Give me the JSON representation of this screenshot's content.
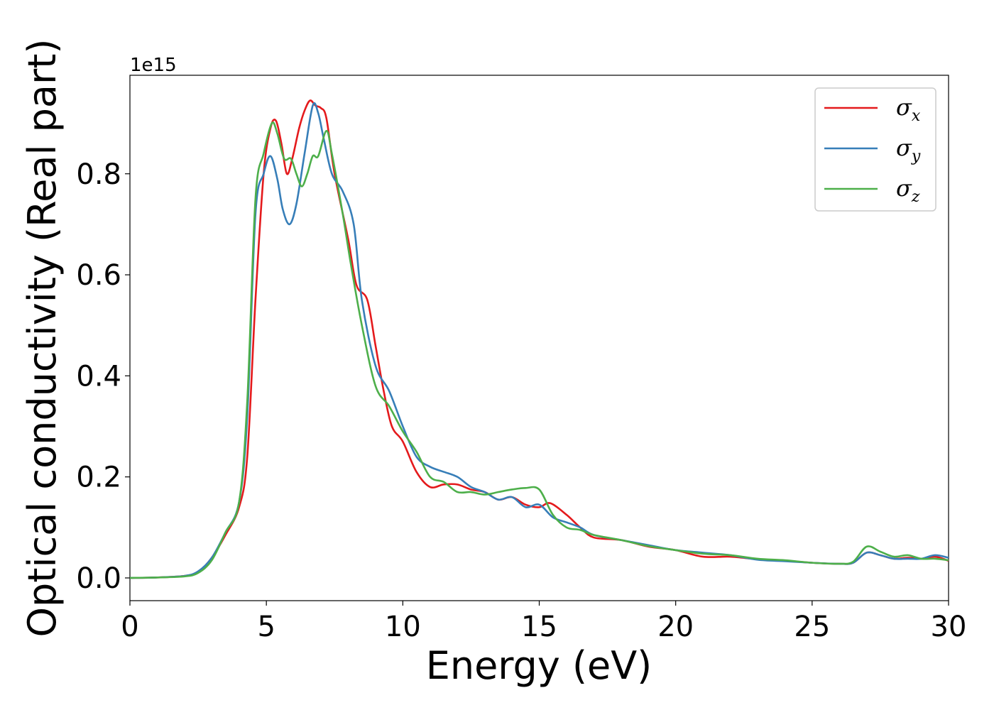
{
  "chart_data": {
    "type": "line",
    "xlabel": "Energy (eV)",
    "ylabel": "Optical conductivity (Real part)",
    "y_offset_label": "1e15",
    "xlim": [
      0,
      30
    ],
    "ylim": [
      -0.045,
      0.995
    ],
    "x_ticks": [
      0,
      5,
      10,
      15,
      20,
      25,
      30
    ],
    "x_tick_labels": [
      "0",
      "5",
      "10",
      "15",
      "20",
      "25",
      "30"
    ],
    "y_ticks": [
      0.0,
      0.2,
      0.4,
      0.6,
      0.8
    ],
    "y_tick_labels": [
      "0.0",
      "0.2",
      "0.4",
      "0.6",
      "0.8"
    ],
    "grid": false,
    "legend_position": "top-right",
    "series": [
      {
        "name": "σ",
        "subscript": "x",
        "color": "#e41a1c",
        "points": [
          [
            0,
            0.0
          ],
          [
            1,
            0.001
          ],
          [
            2,
            0.004
          ],
          [
            2.5,
            0.012
          ],
          [
            3,
            0.04
          ],
          [
            3.5,
            0.085
          ],
          [
            4,
            0.14
          ],
          [
            4.3,
            0.24
          ],
          [
            4.6,
            0.55
          ],
          [
            4.9,
            0.8
          ],
          [
            5.15,
            0.89
          ],
          [
            5.35,
            0.905
          ],
          [
            5.55,
            0.86
          ],
          [
            5.75,
            0.8
          ],
          [
            5.95,
            0.83
          ],
          [
            6.2,
            0.89
          ],
          [
            6.4,
            0.925
          ],
          [
            6.6,
            0.945
          ],
          [
            6.8,
            0.935
          ],
          [
            7.0,
            0.93
          ],
          [
            7.2,
            0.91
          ],
          [
            7.5,
            0.8
          ],
          [
            8.0,
            0.67
          ],
          [
            8.3,
            0.58
          ],
          [
            8.7,
            0.55
          ],
          [
            9.0,
            0.46
          ],
          [
            9.3,
            0.37
          ],
          [
            9.6,
            0.3
          ],
          [
            10,
            0.27
          ],
          [
            10.5,
            0.21
          ],
          [
            11,
            0.18
          ],
          [
            11.5,
            0.185
          ],
          [
            12,
            0.185
          ],
          [
            12.5,
            0.175
          ],
          [
            13,
            0.17
          ],
          [
            13.5,
            0.155
          ],
          [
            14,
            0.16
          ],
          [
            14.5,
            0.145
          ],
          [
            15,
            0.14
          ],
          [
            15.4,
            0.148
          ],
          [
            16,
            0.125
          ],
          [
            16.5,
            0.1
          ],
          [
            17,
            0.08
          ],
          [
            18,
            0.075
          ],
          [
            19,
            0.062
          ],
          [
            20,
            0.055
          ],
          [
            21,
            0.042
          ],
          [
            22,
            0.042
          ],
          [
            23,
            0.037
          ],
          [
            24,
            0.034
          ],
          [
            25,
            0.03
          ],
          [
            26,
            0.028
          ],
          [
            26.5,
            0.03
          ],
          [
            27,
            0.05
          ],
          [
            27.5,
            0.045
          ],
          [
            28,
            0.038
          ],
          [
            28.5,
            0.04
          ],
          [
            29,
            0.038
          ],
          [
            29.5,
            0.042
          ],
          [
            30,
            0.034
          ]
        ]
      },
      {
        "name": "σ",
        "subscript": "y",
        "color": "#377eb8",
        "points": [
          [
            0,
            0.0
          ],
          [
            1,
            0.001
          ],
          [
            2,
            0.004
          ],
          [
            2.5,
            0.013
          ],
          [
            3,
            0.04
          ],
          [
            3.5,
            0.09
          ],
          [
            4,
            0.15
          ],
          [
            4.3,
            0.32
          ],
          [
            4.6,
            0.72
          ],
          [
            4.9,
            0.8
          ],
          [
            5.15,
            0.835
          ],
          [
            5.4,
            0.79
          ],
          [
            5.6,
            0.73
          ],
          [
            5.85,
            0.7
          ],
          [
            6.1,
            0.74
          ],
          [
            6.4,
            0.84
          ],
          [
            6.7,
            0.935
          ],
          [
            6.9,
            0.92
          ],
          [
            7.1,
            0.87
          ],
          [
            7.4,
            0.8
          ],
          [
            7.8,
            0.765
          ],
          [
            8.2,
            0.7
          ],
          [
            8.5,
            0.55
          ],
          [
            9.0,
            0.42
          ],
          [
            9.5,
            0.37
          ],
          [
            10,
            0.3
          ],
          [
            10.5,
            0.24
          ],
          [
            11,
            0.22
          ],
          [
            11.5,
            0.21
          ],
          [
            12,
            0.2
          ],
          [
            12.5,
            0.18
          ],
          [
            13,
            0.17
          ],
          [
            13.5,
            0.155
          ],
          [
            14,
            0.16
          ],
          [
            14.5,
            0.14
          ],
          [
            15,
            0.145
          ],
          [
            15.5,
            0.12
          ],
          [
            16,
            0.11
          ],
          [
            16.5,
            0.1
          ],
          [
            17,
            0.085
          ],
          [
            18,
            0.075
          ],
          [
            19,
            0.065
          ],
          [
            20,
            0.055
          ],
          [
            21,
            0.05
          ],
          [
            22,
            0.045
          ],
          [
            23,
            0.036
          ],
          [
            24,
            0.033
          ],
          [
            25,
            0.03
          ],
          [
            26,
            0.028
          ],
          [
            26.5,
            0.03
          ],
          [
            27,
            0.05
          ],
          [
            27.5,
            0.045
          ],
          [
            28,
            0.038
          ],
          [
            28.5,
            0.038
          ],
          [
            29,
            0.038
          ],
          [
            29.5,
            0.045
          ],
          [
            30,
            0.04
          ]
        ]
      },
      {
        "name": "σ",
        "subscript": "z",
        "color": "#4daf4a",
        "points": [
          [
            0,
            0.0
          ],
          [
            1,
            0.001
          ],
          [
            2,
            0.003
          ],
          [
            2.5,
            0.01
          ],
          [
            3,
            0.035
          ],
          [
            3.5,
            0.09
          ],
          [
            4,
            0.15
          ],
          [
            4.3,
            0.35
          ],
          [
            4.6,
            0.75
          ],
          [
            4.9,
            0.84
          ],
          [
            5.2,
            0.9
          ],
          [
            5.4,
            0.88
          ],
          [
            5.65,
            0.83
          ],
          [
            5.9,
            0.83
          ],
          [
            6.1,
            0.8
          ],
          [
            6.3,
            0.775
          ],
          [
            6.5,
            0.8
          ],
          [
            6.7,
            0.835
          ],
          [
            6.9,
            0.835
          ],
          [
            7.2,
            0.885
          ],
          [
            7.4,
            0.84
          ],
          [
            7.8,
            0.72
          ],
          [
            8.1,
            0.62
          ],
          [
            8.5,
            0.5
          ],
          [
            9.0,
            0.38
          ],
          [
            9.5,
            0.34
          ],
          [
            10,
            0.29
          ],
          [
            10.5,
            0.25
          ],
          [
            11,
            0.2
          ],
          [
            11.5,
            0.19
          ],
          [
            12,
            0.17
          ],
          [
            12.5,
            0.17
          ],
          [
            13,
            0.165
          ],
          [
            13.5,
            0.17
          ],
          [
            14,
            0.175
          ],
          [
            14.5,
            0.178
          ],
          [
            15,
            0.175
          ],
          [
            15.5,
            0.125
          ],
          [
            16,
            0.1
          ],
          [
            16.5,
            0.095
          ],
          [
            17,
            0.085
          ],
          [
            18,
            0.075
          ],
          [
            19,
            0.063
          ],
          [
            20,
            0.055
          ],
          [
            21,
            0.048
          ],
          [
            22,
            0.045
          ],
          [
            23,
            0.038
          ],
          [
            24,
            0.035
          ],
          [
            25,
            0.03
          ],
          [
            26,
            0.028
          ],
          [
            26.5,
            0.032
          ],
          [
            27,
            0.062
          ],
          [
            27.5,
            0.052
          ],
          [
            28,
            0.042
          ],
          [
            28.5,
            0.045
          ],
          [
            29,
            0.038
          ],
          [
            29.5,
            0.038
          ],
          [
            30,
            0.035
          ]
        ]
      }
    ]
  }
}
